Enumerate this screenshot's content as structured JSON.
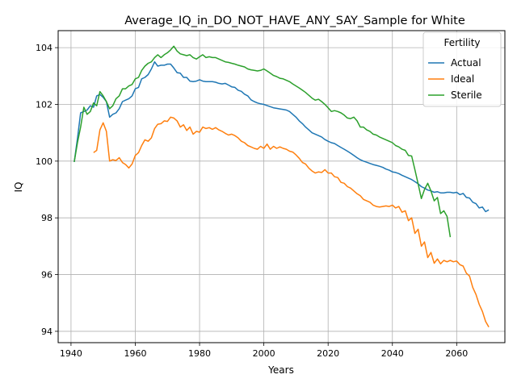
{
  "chart_data": {
    "type": "line",
    "title": "Average_IQ_in_DO_NOT_HAVE_ANY_SAY_Sample for White",
    "xlabel": "Years",
    "ylabel": "IQ",
    "xlim": [
      1936,
      2075
    ],
    "ylim": [
      93.6,
      104.6
    ],
    "xticks": [
      1940,
      1960,
      1980,
      2000,
      2020,
      2040,
      2060
    ],
    "yticks": [
      94,
      96,
      98,
      100,
      102,
      104
    ],
    "grid": true,
    "legend": {
      "title": "Fertility",
      "position": "top-right"
    },
    "series": [
      {
        "name": "Actual",
        "color": "#1f77b4",
        "x": [
          1941,
          1942,
          1943,
          1944,
          1945,
          1946,
          1947,
          1948,
          1949,
          1950,
          1951,
          1952,
          1953,
          1954,
          1955,
          1956,
          1957,
          1958,
          1959,
          1960,
          1961,
          1962,
          1963,
          1964,
          1965,
          1966,
          1967,
          1968,
          1969,
          1970,
          1971,
          1972,
          1973,
          1974,
          1975,
          1976,
          1977,
          1978,
          1979,
          1980,
          1981,
          1982,
          1983,
          1984,
          1985,
          1986,
          1987,
          1988,
          1989,
          1990,
          1991,
          1992,
          1993,
          1994,
          1995,
          1996,
          1997,
          1998,
          1999,
          2000,
          2001,
          2002,
          2003,
          2004,
          2005,
          2006,
          2007,
          2008,
          2009,
          2010,
          2011,
          2012,
          2013,
          2014,
          2015,
          2016,
          2017,
          2018,
          2019,
          2020,
          2021,
          2022,
          2023,
          2024,
          2025,
          2026,
          2027,
          2028,
          2029,
          2030,
          2031,
          2032,
          2033,
          2034,
          2035,
          2036,
          2037,
          2038,
          2039,
          2040,
          2041,
          2042,
          2043,
          2044,
          2045,
          2046,
          2047,
          2048,
          2049,
          2050,
          2051,
          2052,
          2053,
          2054,
          2055,
          2056,
          2057,
          2058,
          2059,
          2060,
          2061,
          2062,
          2063,
          2064,
          2065,
          2066,
          2067,
          2068,
          2069,
          2070
        ],
        "values": [
          99.97,
          100.8,
          101.7,
          101.75,
          101.8,
          101.95,
          101.9,
          102.3,
          102.35,
          102.25,
          102.1,
          101.55,
          101.65,
          101.7,
          101.85,
          102.1,
          102.15,
          102.2,
          102.3,
          102.55,
          102.6,
          102.9,
          102.95,
          103.05,
          103.25,
          103.5,
          103.35,
          103.38,
          103.38,
          103.42,
          103.42,
          103.28,
          103.12,
          103.1,
          102.95,
          102.95,
          102.82,
          102.8,
          102.82,
          102.87,
          102.82,
          102.8,
          102.8,
          102.8,
          102.78,
          102.74,
          102.72,
          102.74,
          102.68,
          102.62,
          102.6,
          102.5,
          102.46,
          102.36,
          102.3,
          102.16,
          102.1,
          102.05,
          102.02,
          102.0,
          101.96,
          101.92,
          101.88,
          101.86,
          101.84,
          101.82,
          101.8,
          101.75,
          101.65,
          101.55,
          101.42,
          101.32,
          101.2,
          101.1,
          101.0,
          100.95,
          100.9,
          100.85,
          100.76,
          100.7,
          100.65,
          100.62,
          100.55,
          100.48,
          100.42,
          100.35,
          100.28,
          100.2,
          100.12,
          100.05,
          100.0,
          99.96,
          99.92,
          99.88,
          99.85,
          99.82,
          99.78,
          99.72,
          99.68,
          99.62,
          99.6,
          99.56,
          99.5,
          99.45,
          99.4,
          99.35,
          99.28,
          99.2,
          99.1,
          99.05,
          98.98,
          98.95,
          98.9,
          98.92,
          98.88,
          98.88,
          98.9,
          98.9,
          98.88,
          98.9,
          98.82,
          98.86,
          98.72,
          98.7,
          98.55,
          98.5,
          98.35,
          98.38,
          98.22,
          98.28
        ]
      },
      {
        "name": "Ideal",
        "color": "#ff7f0e",
        "x": [
          1947,
          1948,
          1949,
          1950,
          1951,
          1952,
          1953,
          1954,
          1955,
          1956,
          1957,
          1958,
          1959,
          1960,
          1961,
          1962,
          1963,
          1964,
          1965,
          1966,
          1967,
          1968,
          1969,
          1970,
          1971,
          1972,
          1973,
          1974,
          1975,
          1976,
          1977,
          1978,
          1979,
          1980,
          1981,
          1982,
          1983,
          1984,
          1985,
          1986,
          1987,
          1988,
          1989,
          1990,
          1991,
          1992,
          1993,
          1994,
          1995,
          1996,
          1997,
          1998,
          1999,
          2000,
          2001,
          2002,
          2003,
          2004,
          2005,
          2006,
          2007,
          2008,
          2009,
          2010,
          2011,
          2012,
          2013,
          2014,
          2015,
          2016,
          2017,
          2018,
          2019,
          2020,
          2021,
          2022,
          2023,
          2024,
          2025,
          2026,
          2027,
          2028,
          2029,
          2030,
          2031,
          2032,
          2033,
          2034,
          2035,
          2036,
          2037,
          2038,
          2039,
          2040,
          2041,
          2042,
          2043,
          2044,
          2045,
          2046,
          2047,
          2048,
          2049,
          2050,
          2051,
          2052,
          2053,
          2054,
          2055,
          2056,
          2057,
          2058,
          2059,
          2060,
          2061,
          2062,
          2063,
          2064,
          2065,
          2066,
          2067,
          2068,
          2069,
          2070
        ],
        "values": [
          100.3,
          100.38,
          101.1,
          101.35,
          101.05,
          100.0,
          100.05,
          100.02,
          100.12,
          99.95,
          99.88,
          99.76,
          99.9,
          100.2,
          100.3,
          100.55,
          100.75,
          100.7,
          100.82,
          101.15,
          101.3,
          101.32,
          101.42,
          101.4,
          101.55,
          101.52,
          101.42,
          101.2,
          101.28,
          101.08,
          101.2,
          100.95,
          101.05,
          101.02,
          101.2,
          101.15,
          101.18,
          101.12,
          101.18,
          101.1,
          101.05,
          100.98,
          100.92,
          100.95,
          100.9,
          100.82,
          100.7,
          100.65,
          100.55,
          100.5,
          100.45,
          100.42,
          100.52,
          100.45,
          100.6,
          100.42,
          100.52,
          100.45,
          100.5,
          100.45,
          100.42,
          100.35,
          100.32,
          100.22,
          100.1,
          99.95,
          99.9,
          99.75,
          99.65,
          99.58,
          99.62,
          99.6,
          99.7,
          99.58,
          99.58,
          99.45,
          99.42,
          99.25,
          99.22,
          99.1,
          99.05,
          98.95,
          98.85,
          98.78,
          98.65,
          98.6,
          98.55,
          98.45,
          98.4,
          98.38,
          98.4,
          98.42,
          98.4,
          98.45,
          98.35,
          98.4,
          98.2,
          98.25,
          97.9,
          98.0,
          97.45,
          97.6,
          97.0,
          97.15,
          96.6,
          96.78,
          96.4,
          96.55,
          96.38,
          96.5,
          96.45,
          96.5,
          96.45,
          96.48,
          96.35,
          96.3,
          96.05,
          95.95,
          95.55,
          95.3,
          94.95,
          94.7,
          94.35,
          94.15
        ]
      },
      {
        "name": "Sterile",
        "color": "#2ca02c",
        "x": [
          1941,
          1942,
          1943,
          1944,
          1945,
          1946,
          1947,
          1948,
          1949,
          1950,
          1951,
          1952,
          1953,
          1954,
          1955,
          1956,
          1957,
          1958,
          1959,
          1960,
          1961,
          1962,
          1963,
          1964,
          1965,
          1966,
          1967,
          1968,
          1969,
          1970,
          1971,
          1972,
          1973,
          1974,
          1975,
          1976,
          1977,
          1978,
          1979,
          1980,
          1981,
          1982,
          1983,
          1984,
          1985,
          1986,
          1987,
          1988,
          1989,
          1990,
          1991,
          1992,
          1993,
          1994,
          1995,
          1996,
          1997,
          1998,
          1999,
          2000,
          2001,
          2002,
          2003,
          2004,
          2005,
          2006,
          2007,
          2008,
          2009,
          2010,
          2011,
          2012,
          2013,
          2014,
          2015,
          2016,
          2017,
          2018,
          2019,
          2020,
          2021,
          2022,
          2023,
          2024,
          2025,
          2026,
          2027,
          2028,
          2029,
          2030,
          2031,
          2032,
          2033,
          2034,
          2035,
          2036,
          2037,
          2038,
          2039,
          2040,
          2041,
          2042,
          2043,
          2044,
          2045,
          2046,
          2047,
          2048,
          2049,
          2050,
          2051,
          2052,
          2053,
          2054,
          2055,
          2056,
          2057,
          2058
        ],
        "values": [
          99.97,
          100.65,
          101.2,
          101.9,
          101.65,
          101.75,
          102.05,
          101.95,
          102.45,
          102.3,
          102.1,
          101.85,
          101.95,
          102.2,
          102.3,
          102.55,
          102.55,
          102.65,
          102.7,
          102.9,
          102.95,
          103.2,
          103.35,
          103.45,
          103.5,
          103.65,
          103.75,
          103.65,
          103.75,
          103.82,
          103.92,
          104.05,
          103.88,
          103.78,
          103.75,
          103.72,
          103.75,
          103.65,
          103.6,
          103.68,
          103.75,
          103.65,
          103.68,
          103.65,
          103.65,
          103.6,
          103.55,
          103.5,
          103.48,
          103.45,
          103.42,
          103.38,
          103.35,
          103.32,
          103.25,
          103.22,
          103.2,
          103.18,
          103.2,
          103.25,
          103.18,
          103.1,
          103.02,
          102.98,
          102.92,
          102.9,
          102.85,
          102.8,
          102.72,
          102.65,
          102.58,
          102.5,
          102.42,
          102.32,
          102.22,
          102.15,
          102.18,
          102.1,
          102.0,
          101.88,
          101.75,
          101.78,
          101.75,
          101.7,
          101.62,
          101.52,
          101.5,
          101.55,
          101.42,
          101.2,
          101.2,
          101.1,
          101.05,
          100.95,
          100.92,
          100.85,
          100.8,
          100.75,
          100.7,
          100.65,
          100.55,
          100.5,
          100.42,
          100.38,
          100.2,
          100.18,
          99.7,
          99.2,
          98.68,
          99.0,
          99.22,
          98.95,
          98.6,
          98.72,
          98.15,
          98.25,
          98.05,
          97.32
        ]
      }
    ]
  }
}
